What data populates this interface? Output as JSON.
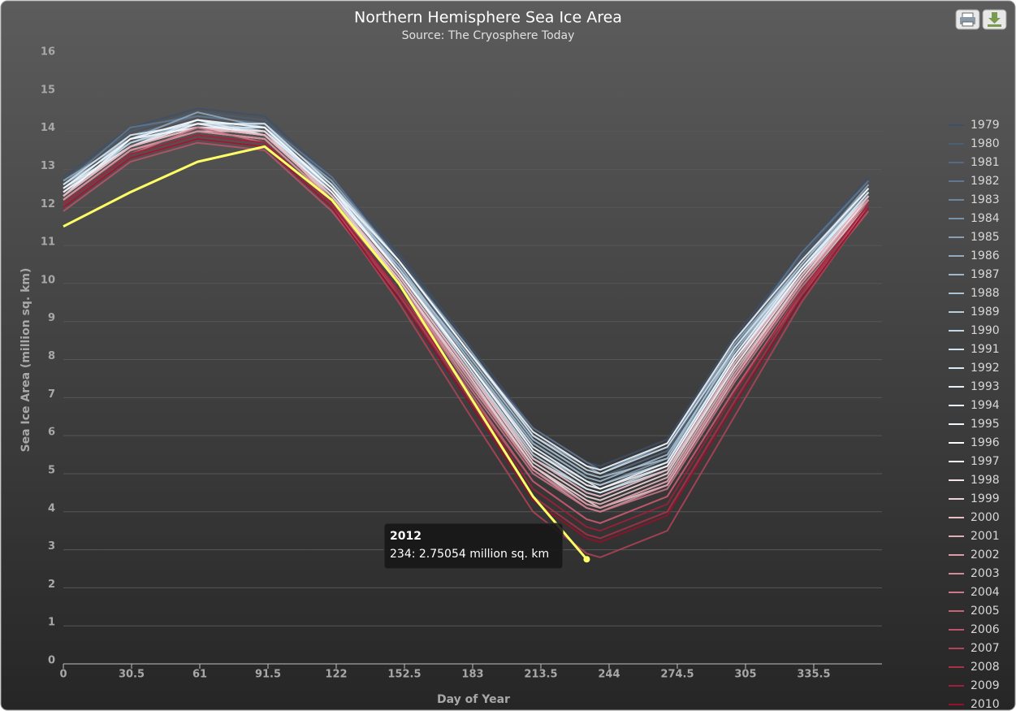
{
  "chart_data": {
    "type": "line",
    "title": "Northern Hemisphere Sea Ice Area",
    "subtitle": "Source: The Cryosphere Today",
    "x_label": "Day of Year",
    "y_label": "Sea Ice Area (million sq. km)",
    "xlim": [
      0,
      366
    ],
    "ylim": [
      0,
      16
    ],
    "xticks": [
      0,
      30.5,
      61,
      91.5,
      122,
      152.5,
      183,
      213.5,
      244,
      274.5,
      305,
      335.5
    ],
    "yticks": [
      0,
      1,
      2,
      3,
      4,
      5,
      6,
      7,
      8,
      9,
      10,
      11,
      12,
      13,
      14,
      15,
      16
    ],
    "grid": true,
    "legend": "right",
    "x": [
      0,
      30,
      60,
      90,
      120,
      150,
      180,
      210,
      234,
      240,
      270,
      300,
      330,
      360
    ],
    "series": [
      {
        "name": "1979",
        "color": "#3e5068",
        "values": [
          12.8,
          14.1,
          14.6,
          14.4,
          12.8,
          10.8,
          8.5,
          6.2,
          5.3,
          5.2,
          5.9,
          8.6,
          10.8,
          12.8
        ]
      },
      {
        "name": "1980",
        "color": "#4a5e76",
        "values": [
          12.7,
          14.0,
          14.5,
          14.3,
          12.7,
          10.7,
          8.4,
          6.1,
          5.2,
          5.1,
          5.8,
          8.5,
          10.7,
          12.7
        ]
      },
      {
        "name": "1981",
        "color": "#566b83",
        "values": [
          12.6,
          13.9,
          14.4,
          14.2,
          12.6,
          10.6,
          8.2,
          5.9,
          5.0,
          4.9,
          5.6,
          8.3,
          10.6,
          12.6
        ]
      },
      {
        "name": "1982",
        "color": "#627890",
        "values": [
          12.6,
          14.1,
          14.4,
          14.2,
          12.8,
          10.6,
          8.3,
          6.2,
          5.3,
          5.1,
          5.7,
          8.4,
          10.8,
          12.7
        ]
      },
      {
        "name": "1983",
        "color": "#6e859c",
        "values": [
          12.5,
          13.8,
          14.3,
          14.1,
          12.5,
          10.5,
          8.1,
          5.8,
          4.9,
          4.8,
          5.5,
          8.2,
          10.5,
          12.5
        ]
      },
      {
        "name": "1984",
        "color": "#7a92a8",
        "values": [
          12.4,
          13.7,
          14.2,
          14.0,
          12.4,
          10.3,
          8.0,
          5.6,
          4.7,
          4.6,
          5.3,
          8.0,
          10.3,
          12.4
        ]
      },
      {
        "name": "1985",
        "color": "#879fb4",
        "values": [
          12.5,
          13.8,
          14.3,
          14.1,
          12.5,
          10.4,
          8.1,
          5.7,
          4.8,
          4.7,
          5.4,
          8.1,
          10.4,
          12.5
        ]
      },
      {
        "name": "1986",
        "color": "#93abbf",
        "values": [
          12.7,
          13.8,
          14.5,
          14.1,
          12.7,
          10.6,
          8.4,
          6.0,
          5.2,
          5.0,
          5.8,
          8.4,
          10.5,
          12.6
        ]
      },
      {
        "name": "1987",
        "color": "#9fb7ca",
        "values": [
          12.4,
          13.9,
          14.2,
          14.2,
          12.4,
          10.5,
          8.1,
          5.8,
          4.9,
          4.8,
          5.5,
          8.2,
          10.4,
          12.4
        ]
      },
      {
        "name": "1988",
        "color": "#abc3d5",
        "values": [
          12.6,
          13.7,
          14.3,
          14.0,
          12.6,
          10.4,
          8.2,
          5.9,
          5.0,
          4.9,
          5.4,
          8.3,
          10.5,
          12.5
        ]
      },
      {
        "name": "1989",
        "color": "#b7cede",
        "values": [
          12.3,
          13.8,
          14.1,
          14.1,
          12.3,
          10.4,
          8.0,
          5.6,
          4.8,
          4.7,
          5.3,
          8.1,
          10.3,
          12.3
        ]
      },
      {
        "name": "1990",
        "color": "#c2d8e7",
        "values": [
          12.4,
          13.7,
          14.2,
          14.0,
          12.4,
          10.3,
          7.9,
          5.4,
          4.5,
          4.4,
          5.1,
          7.9,
          10.3,
          12.4
        ]
      },
      {
        "name": "1991",
        "color": "#cde1ee",
        "values": [
          12.3,
          13.6,
          14.1,
          14.1,
          12.5,
          10.3,
          7.9,
          5.5,
          4.6,
          4.5,
          5.2,
          8.0,
          10.2,
          12.3
        ]
      },
      {
        "name": "1992",
        "color": "#d8e9f4",
        "values": [
          12.6,
          13.9,
          14.2,
          14.2,
          12.6,
          10.6,
          8.3,
          6.0,
          5.1,
          5.0,
          5.7,
          8.3,
          10.4,
          12.4
        ]
      },
      {
        "name": "1993",
        "color": "#e2f0f9",
        "values": [
          12.5,
          13.6,
          14.3,
          13.9,
          12.3,
          10.2,
          7.8,
          5.4,
          4.6,
          4.5,
          5.1,
          7.8,
          10.2,
          12.3
        ]
      },
      {
        "name": "1994",
        "color": "#ebf5fc",
        "values": [
          12.3,
          13.8,
          14.1,
          14.0,
          12.5,
          10.3,
          8.0,
          5.7,
          4.8,
          4.6,
          5.3,
          8.1,
          10.4,
          12.3
        ]
      },
      {
        "name": "1995",
        "color": "#f2f9fe",
        "values": [
          12.3,
          13.6,
          14.1,
          13.9,
          12.3,
          10.1,
          7.6,
          5.2,
          4.2,
          4.1,
          4.8,
          7.6,
          10.1,
          12.3
        ]
      },
      {
        "name": "1996",
        "color": "#f9fcff",
        "values": [
          12.5,
          13.8,
          14.3,
          14.1,
          12.5,
          10.6,
          8.3,
          6.1,
          5.2,
          5.1,
          5.8,
          8.5,
          10.6,
          12.5
        ]
      },
      {
        "name": "1997",
        "color": "#fbf7f9",
        "values": [
          12.4,
          13.6,
          14.2,
          13.9,
          12.4,
          10.3,
          8.0,
          5.6,
          4.7,
          4.6,
          5.2,
          8.0,
          10.3,
          12.2
        ]
      },
      {
        "name": "1998",
        "color": "#f5e4e8",
        "values": [
          12.3,
          13.6,
          14.1,
          13.9,
          12.3,
          10.2,
          7.8,
          5.3,
          4.4,
          4.3,
          5.0,
          7.8,
          10.2,
          12.3
        ]
      },
      {
        "name": "1999",
        "color": "#efd2d8",
        "values": [
          12.2,
          13.5,
          14.0,
          14.0,
          12.2,
          10.1,
          7.7,
          5.2,
          4.3,
          4.1,
          4.7,
          7.5,
          10.0,
          12.1
        ]
      },
      {
        "name": "2000",
        "color": "#e9c0c8",
        "values": [
          12.2,
          13.5,
          14.0,
          13.8,
          12.2,
          10.1,
          7.7,
          5.2,
          4.3,
          4.2,
          4.9,
          7.7,
          10.1,
          12.2
        ]
      },
      {
        "name": "2001",
        "color": "#e2aeb8",
        "values": [
          12.3,
          13.6,
          14.1,
          13.9,
          12.3,
          10.2,
          7.8,
          5.4,
          4.5,
          4.4,
          5.1,
          7.9,
          10.2,
          12.3
        ]
      },
      {
        "name": "2002",
        "color": "#db9ca8",
        "values": [
          12.2,
          13.5,
          14.0,
          13.8,
          12.2,
          10.0,
          7.5,
          5.1,
          4.1,
          4.0,
          4.7,
          7.5,
          10.0,
          12.2
        ]
      },
      {
        "name": "2003",
        "color": "#d48a98",
        "values": [
          12.2,
          13.5,
          14.0,
          13.8,
          12.2,
          10.0,
          7.6,
          5.1,
          4.2,
          4.1,
          4.8,
          7.6,
          10.0,
          12.2
        ]
      },
      {
        "name": "2004",
        "color": "#cd7888",
        "values": [
          12.1,
          13.4,
          14.1,
          13.7,
          12.1,
          10.0,
          7.4,
          5.0,
          4.1,
          4.0,
          4.6,
          7.4,
          9.9,
          12.0
        ]
      },
      {
        "name": "2005",
        "color": "#c56678",
        "values": [
          12.0,
          13.3,
          13.8,
          13.6,
          12.0,
          9.8,
          7.3,
          4.8,
          3.8,
          3.7,
          4.4,
          7.2,
          9.8,
          12.0
        ]
      },
      {
        "name": "2006",
        "color": "#bd5468",
        "values": [
          11.9,
          13.2,
          13.7,
          13.5,
          11.9,
          9.7,
          7.2,
          4.8,
          3.8,
          3.7,
          4.4,
          7.2,
          9.7,
          11.9
        ]
      },
      {
        "name": "2007",
        "color": "#b44258",
        "values": [
          12.0,
          13.3,
          13.8,
          13.6,
          12.0,
          9.5,
          6.7,
          4.0,
          2.9,
          2.8,
          3.5,
          6.5,
          9.5,
          12.0
        ]
      },
      {
        "name": "2008",
        "color": "#ab3048",
        "values": [
          12.1,
          13.4,
          13.9,
          13.7,
          12.1,
          9.7,
          7.1,
          4.4,
          3.4,
          3.3,
          4.0,
          6.9,
          9.7,
          12.1
        ]
      },
      {
        "name": "2009",
        "color": "#a11f38",
        "values": [
          12.1,
          13.4,
          13.9,
          13.7,
          12.1,
          9.8,
          7.2,
          4.6,
          3.6,
          3.5,
          4.2,
          7.1,
          9.8,
          12.1
        ]
      },
      {
        "name": "2010",
        "color": "#96102a",
        "values": [
          12.0,
          13.3,
          13.8,
          13.6,
          12.0,
          9.6,
          7.0,
          4.3,
          3.3,
          3.2,
          3.9,
          6.8,
          9.6,
          12.0
        ]
      },
      {
        "name": "2012",
        "color": "#ffff66",
        "in_legend": false,
        "values": [
          11.5,
          12.4,
          13.2,
          13.6,
          12.2,
          10.0,
          7.2,
          4.4,
          2.75054,
          null,
          null,
          null,
          null,
          null
        ]
      }
    ],
    "tooltip": {
      "series": 32,
      "point": 8,
      "text": "234: 2.75054 million sq. km"
    }
  }
}
